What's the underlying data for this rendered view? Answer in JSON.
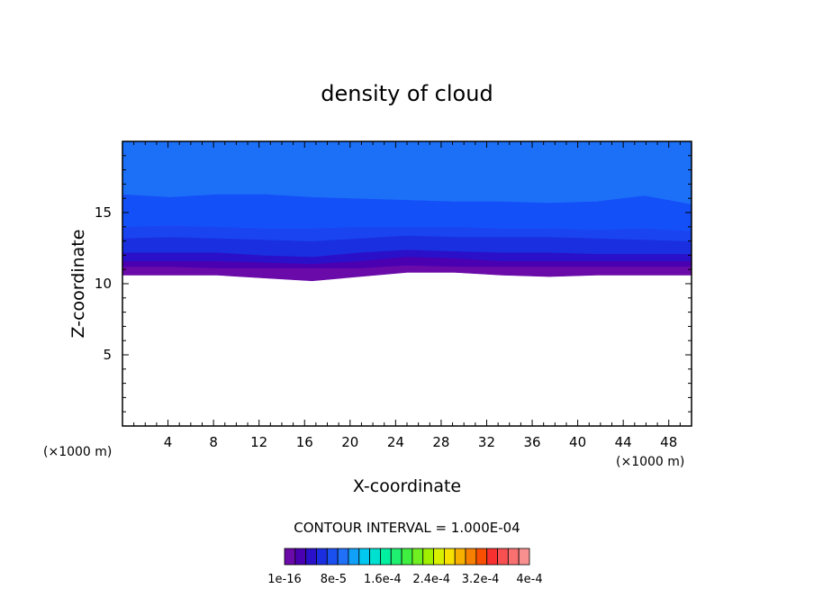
{
  "chart_data": {
    "type": "heatmap",
    "title": "density of cloud",
    "xlabel": "X-coordinate",
    "ylabel": "Z-coordinate",
    "x_unit": "(×1000 m)",
    "y_unit": "(×1000 m)",
    "xlim": [
      0,
      50
    ],
    "ylim": [
      0,
      20
    ],
    "x_ticks": [
      4,
      8,
      12,
      16,
      20,
      24,
      28,
      32,
      36,
      40,
      44,
      48
    ],
    "y_ticks": [
      5,
      10,
      15
    ],
    "contour_interval_label": "CONTOUR INTERVAL = 1.000E-04",
    "colorbar": {
      "colors": [
        "#6a0aa8",
        "#4a00b0",
        "#2a10c8",
        "#1a2ee0",
        "#1a50f0",
        "#2070f8",
        "#10a0f8",
        "#00c8f0",
        "#00e0d0",
        "#00f0a0",
        "#20f070",
        "#40f040",
        "#70f020",
        "#a0f000",
        "#d8f000",
        "#f8e000",
        "#f8b000",
        "#f88000",
        "#f85000",
        "#f83030",
        "#f85050",
        "#f87070",
        "#f89090"
      ],
      "labels": [
        "1e-16",
        "8e-5",
        "1.6e-4",
        "2.4e-4",
        "3.2e-4",
        "4e-4"
      ]
    },
    "cloud_layers": [
      {
        "color": "#6a0aa8",
        "bottom": [
          10.6,
          10.6,
          10.6,
          10.4,
          10.2,
          10.5,
          10.8,
          10.8,
          10.6,
          10.5,
          10.6,
          10.6,
          10.6
        ],
        "top": [
          11.2,
          11.2,
          11.1,
          11.1,
          11.1,
          11.1,
          11.3,
          11.2,
          11.2,
          11.2,
          11.2,
          11.2,
          11.2
        ]
      },
      {
        "color": "#4a00b0",
        "bottom": [
          11.2,
          11.2,
          11.1,
          11.1,
          11.1,
          11.1,
          11.3,
          11.2,
          11.2,
          11.2,
          11.2,
          11.2,
          11.2
        ],
        "top": [
          11.6,
          11.6,
          11.6,
          11.5,
          11.4,
          11.6,
          11.9,
          11.8,
          11.6,
          11.6,
          11.6,
          11.6,
          11.6
        ]
      },
      {
        "color": "#2a10c8",
        "bottom": [
          11.6,
          11.6,
          11.6,
          11.5,
          11.4,
          11.6,
          11.9,
          11.8,
          11.6,
          11.6,
          11.6,
          11.6,
          11.6
        ],
        "top": [
          12.2,
          12.2,
          12.2,
          12.0,
          11.9,
          12.2,
          12.4,
          12.3,
          12.2,
          12.2,
          12.1,
          12.1,
          12.1
        ]
      },
      {
        "color": "#1a30e0",
        "bottom": [
          12.2,
          12.2,
          12.2,
          12.0,
          11.9,
          12.2,
          12.4,
          12.3,
          12.2,
          12.2,
          12.1,
          12.1,
          12.1
        ],
        "top": [
          13.2,
          13.3,
          13.2,
          13.1,
          13.0,
          13.2,
          13.4,
          13.3,
          13.3,
          13.3,
          13.2,
          13.1,
          13.0
        ]
      },
      {
        "color": "#1a44f0",
        "bottom": [
          13.2,
          13.3,
          13.2,
          13.1,
          13.0,
          13.2,
          13.4,
          13.3,
          13.3,
          13.3,
          13.2,
          13.1,
          13.0
        ],
        "top": [
          14.0,
          14.1,
          14.0,
          13.9,
          13.9,
          14.0,
          14.0,
          14.0,
          13.9,
          13.9,
          13.8,
          13.9,
          13.7
        ]
      },
      {
        "color": "#1450f8",
        "bottom": [
          14.0,
          14.1,
          14.0,
          13.9,
          13.9,
          14.0,
          14.0,
          14.0,
          13.9,
          13.9,
          13.8,
          13.9,
          13.7
        ],
        "top": [
          16.3,
          16.1,
          16.3,
          16.3,
          16.1,
          16.0,
          15.9,
          15.8,
          15.8,
          15.7,
          15.8,
          16.2,
          15.6
        ]
      },
      {
        "color": "#1c70f8",
        "bottom": [
          16.3,
          16.1,
          16.3,
          16.3,
          16.1,
          16.0,
          15.9,
          15.8,
          15.8,
          15.7,
          15.8,
          16.2,
          15.6
        ],
        "top": [
          20,
          20,
          20,
          20,
          20,
          20,
          20,
          20,
          20,
          20,
          20,
          20,
          20
        ]
      }
    ]
  }
}
